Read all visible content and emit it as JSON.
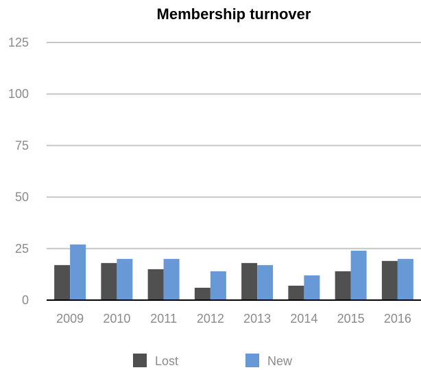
{
  "chart_data": {
    "type": "bar",
    "title": "Membership turnover",
    "xlabel": "",
    "ylabel": "",
    "categories": [
      "2009",
      "2010",
      "2011",
      "2012",
      "2013",
      "2014",
      "2015",
      "2016"
    ],
    "series": [
      {
        "name": "Lost",
        "color": "#505050",
        "values": [
          17,
          18,
          15,
          6,
          18,
          7,
          14,
          19
        ]
      },
      {
        "name": "New",
        "color": "#6699d6",
        "values": [
          27,
          20,
          20,
          14,
          17,
          12,
          24,
          20
        ]
      }
    ],
    "ylim": [
      0,
      125
    ],
    "yticks": [
      "0",
      "25",
      "50",
      "75",
      "100",
      "125"
    ],
    "grid": true,
    "legend_position": "bottom"
  }
}
